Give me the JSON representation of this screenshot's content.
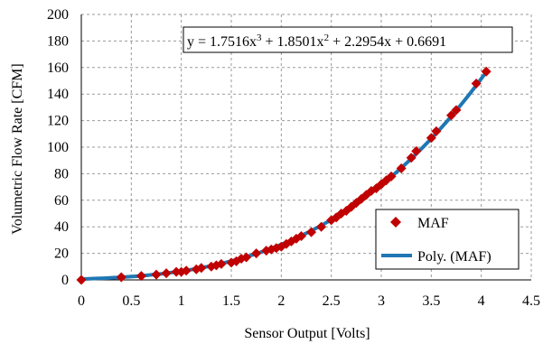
{
  "chart_data": {
    "type": "scatter",
    "xlabel": "Sensor Output [Volts]",
    "ylabel": "Volumetric Flow Rate [CFM]",
    "xlim": [
      0,
      4.5
    ],
    "ylim": [
      0,
      200
    ],
    "x_ticks": [
      0,
      0.5,
      1,
      1.5,
      2,
      2.5,
      3,
      3.5,
      4,
      4.5
    ],
    "y_ticks": [
      0,
      20,
      40,
      60,
      80,
      100,
      120,
      140,
      160,
      180,
      200
    ],
    "grid": true,
    "legend_position": "bottom-right",
    "series": [
      {
        "name": "MAF",
        "marker": "diamond",
        "color": "#c00000",
        "x": [
          0.0,
          0.4,
          0.6,
          0.75,
          0.85,
          0.95,
          1.0,
          1.05,
          1.15,
          1.2,
          1.3,
          1.35,
          1.4,
          1.5,
          1.55,
          1.6,
          1.65,
          1.75,
          1.85,
          1.9,
          1.95,
          2.0,
          2.05,
          2.1,
          2.15,
          2.2,
          2.3,
          2.4,
          2.5,
          2.55,
          2.6,
          2.65,
          2.7,
          2.75,
          2.8,
          2.85,
          2.9,
          2.95,
          3.0,
          3.05,
          3.1,
          3.2,
          3.3,
          3.35,
          3.5,
          3.55,
          3.7,
          3.75,
          3.95,
          4.05
        ],
        "y": [
          0,
          2,
          3,
          4,
          5,
          6,
          6,
          7,
          8,
          9,
          10,
          11,
          12,
          13,
          14,
          16,
          17,
          20,
          22,
          23,
          24,
          25,
          27,
          29,
          31,
          33,
          36,
          40,
          45,
          47,
          50,
          52,
          55,
          58,
          61,
          64,
          67,
          69,
          72,
          75,
          78,
          84,
          92,
          97,
          107,
          112,
          124,
          128,
          148,
          157
        ]
      },
      {
        "name": "Poly. (MAF)",
        "type": "line",
        "color": "#1f77b4",
        "equation": "y = 1.7516x³ + 1.8501x² + 2.2954x + 0.6691",
        "coefficients": [
          1.7516,
          1.8501,
          2.2954,
          0.6691
        ],
        "x_range": [
          0,
          4.07
        ]
      }
    ],
    "annotation": "y = 1.7516x³ + 1.8501x² + 2.2954x + 0.6691"
  },
  "legend": {
    "items": [
      {
        "label": "MAF"
      },
      {
        "label": "Poly. (MAF)"
      }
    ]
  },
  "equation_box": {
    "prefix": "y = 1.7516x",
    "exp1": "3",
    "mid1": " + 1.8501x",
    "exp2": "2",
    "suffix": " + 2.2954x + 0.6691"
  }
}
